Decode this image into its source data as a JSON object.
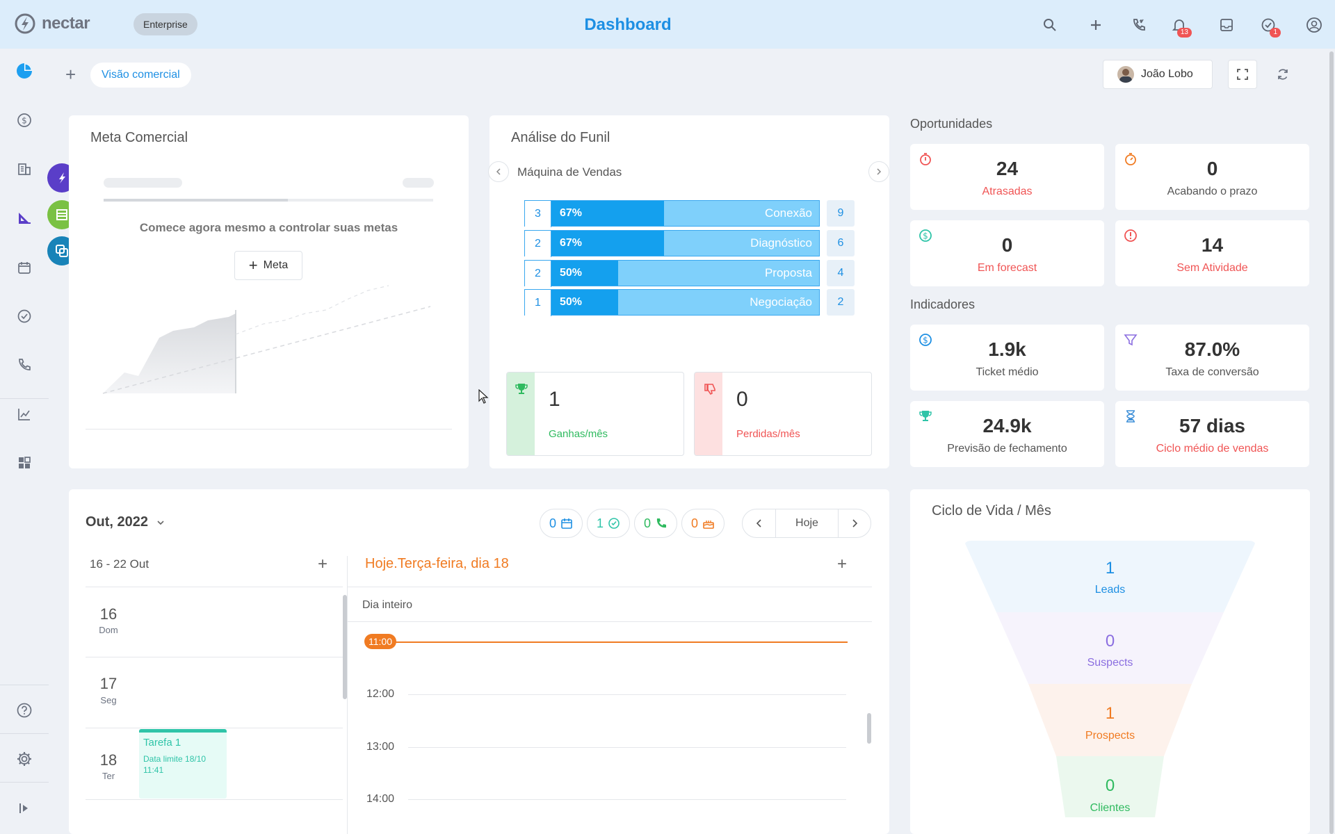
{
  "app": {
    "logo_text": "nectar",
    "plan_badge": "Enterprise",
    "title": "Dashboard"
  },
  "topbar": {
    "notifications_count": "13",
    "tasks_count": "1"
  },
  "toolbar": {
    "tab_label": "Visão comercial",
    "user_name": "João Lobo"
  },
  "meta": {
    "title": "Meta Comercial",
    "empty_text": "Comece agora mesmo a controlar suas metas",
    "button_label": "Meta"
  },
  "funil": {
    "title": "Análise do Funil",
    "pipeline": "Máquina de Vendas",
    "stages": [
      {
        "count": "3",
        "pct": "67%",
        "fill": 0.67,
        "name": "Conexão",
        "total": "9"
      },
      {
        "count": "2",
        "pct": "67%",
        "fill": 0.67,
        "name": "Diagnóstico",
        "total": "6"
      },
      {
        "count": "2",
        "pct": "50%",
        "fill": 0.5,
        "name": "Proposta",
        "total": "4"
      },
      {
        "count": "1",
        "pct": "50%",
        "fill": 0.5,
        "name": "Negociação",
        "total": "2"
      }
    ],
    "won": {
      "value": "1",
      "label": "Ganhas/mês"
    },
    "lost": {
      "value": "0",
      "label": "Perdidas/mês"
    }
  },
  "oportunidades": {
    "title": "Oportunidades",
    "atrasadas": {
      "value": "24",
      "label": "Atrasadas"
    },
    "acabando": {
      "value": "0",
      "label": "Acabando o prazo"
    },
    "forecast": {
      "value": "0",
      "label": "Em forecast"
    },
    "sem_atividade": {
      "value": "14",
      "label": "Sem Atividade"
    }
  },
  "indicadores": {
    "title": "Indicadores",
    "ticket": {
      "value": "1.9k",
      "label": "Ticket médio"
    },
    "conversao": {
      "value": "87.0%",
      "label": "Taxa de conversão"
    },
    "previsao": {
      "value": "24.9k",
      "label": "Previsão de fechamento"
    },
    "ciclo": {
      "value": "57 dias",
      "label": "Ciclo médio de vendas"
    }
  },
  "calendar": {
    "month": "Out, 2022",
    "chips": {
      "events": "0",
      "tasks": "1",
      "calls": "0",
      "birthdays": "0"
    },
    "today_button": "Hoje",
    "week_range": "16 - 22 Out",
    "today_title": "Hoje.Terça-feira, dia 18",
    "all_day": "Dia inteiro",
    "now_time": "11:00",
    "hours": [
      "12:00",
      "13:00",
      "14:00"
    ],
    "days": [
      {
        "num": "16",
        "dow": "Dom"
      },
      {
        "num": "17",
        "dow": "Seg"
      },
      {
        "num": "18",
        "dow": "Ter"
      }
    ],
    "task": {
      "title": "Tarefa 1",
      "due_line1": "Data limite 18/10",
      "due_line2": "11:41"
    }
  },
  "ciclo": {
    "title": "Ciclo de Vida / Mês",
    "leads": {
      "value": "1",
      "label": "Leads"
    },
    "suspects": {
      "value": "0",
      "label": "Suspects"
    },
    "prospects": {
      "value": "1",
      "label": "Prospects"
    },
    "clientes": {
      "value": "0",
      "label": "Clientes"
    }
  },
  "colors": {
    "accent": "#1d8fe3",
    "danger": "#f05454",
    "success": "#2fba5f",
    "orange": "#f07b22"
  }
}
